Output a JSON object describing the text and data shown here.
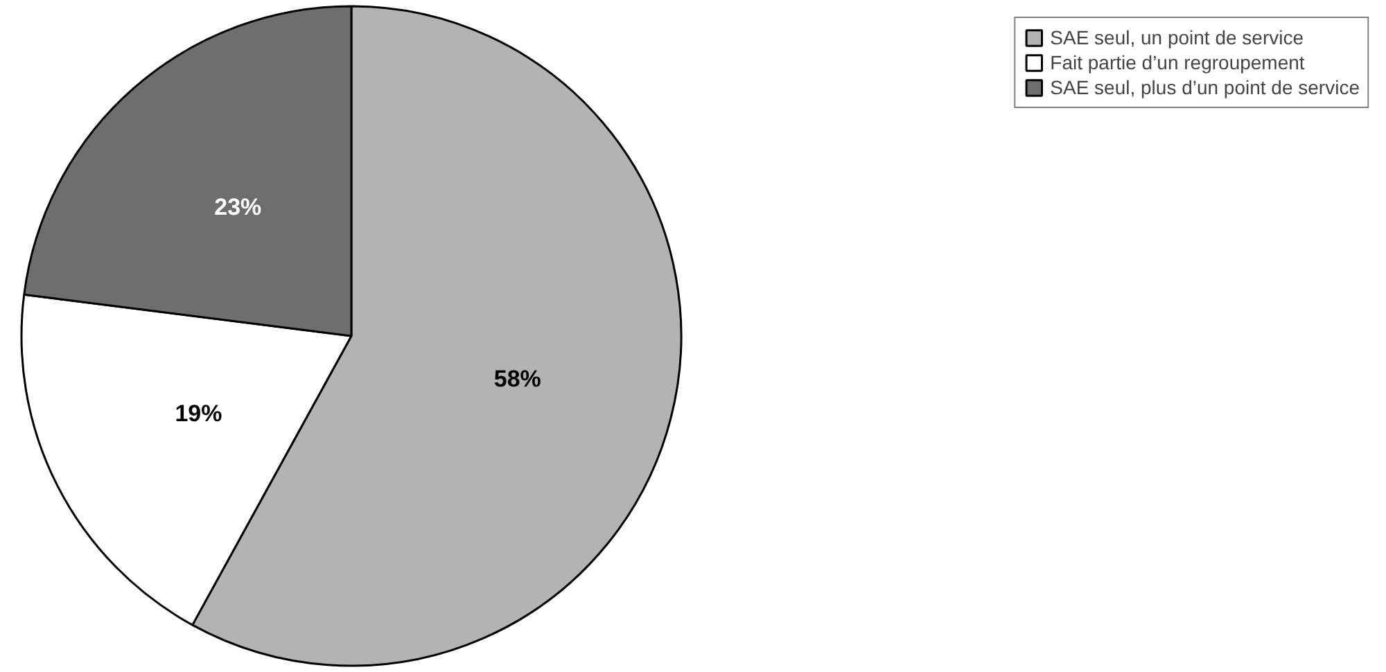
{
  "chart_data": {
    "type": "pie",
    "categories": [
      "SAE seul, un point de service",
      "Fait partie d’un regroupement",
      "SAE seul, plus d’un point de service"
    ],
    "values": [
      58,
      19,
      23
    ],
    "colors": [
      "#b3b3b3",
      "#ffffff",
      "#6e6e6e"
    ],
    "value_labels": [
      "58%",
      "19%",
      "23%"
    ],
    "legend": "top right"
  }
}
